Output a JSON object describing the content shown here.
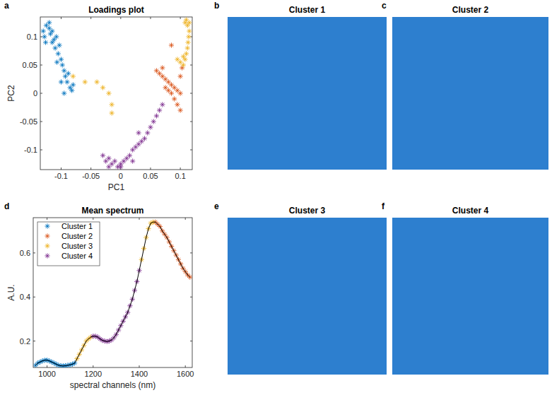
{
  "chart_data": [
    {
      "type": "scatter",
      "panel_label": "a",
      "title": "Loadings plot",
      "x_label": "PC1",
      "y_label": "PC2",
      "xlim": [
        -0.135,
        0.12
      ],
      "xticks": [
        -0.1,
        -0.05,
        0,
        0.05,
        0.1
      ],
      "ylim": [
        -0.135,
        0.135
      ],
      "yticks": [
        -0.1,
        -0.05,
        0,
        0.05,
        0.1
      ],
      "marker": "asterisk",
      "series": [
        {
          "name": "Cluster 1",
          "color": "#0072BD",
          "x": [
            -0.13,
            -0.128,
            -0.125,
            -0.12,
            -0.118,
            -0.115,
            -0.112,
            -0.11,
            -0.108,
            -0.105,
            -0.103,
            -0.1,
            -0.098,
            -0.095,
            -0.093,
            -0.09,
            -0.088,
            -0.085,
            -0.082,
            -0.08,
            -0.12,
            -0.126,
            -0.115,
            -0.107,
            -0.1,
            -0.095
          ],
          "values": [
            0.11,
            0.1,
            0.12,
            0.115,
            0.105,
            0.09,
            0.095,
            0.08,
            0.1,
            0.07,
            0.085,
            0.06,
            0.05,
            0.04,
            0.03,
            0.02,
            0.035,
            0.01,
            0.005,
            0.015,
            0.125,
            0.09,
            0.11,
            0.055,
            0.02,
            0.0
          ]
        },
        {
          "name": "Cluster 2",
          "color": "#D95319",
          "x": [
            0.085,
            0.06,
            0.065,
            0.07,
            0.075,
            0.08,
            0.085,
            0.09,
            0.095,
            0.1,
            0.075,
            0.08,
            0.085,
            0.09,
            0.095,
            0.1,
            0.07,
            0.1,
            0.103
          ],
          "values": [
            0.085,
            0.04,
            0.035,
            0.03,
            0.025,
            0.02,
            0.015,
            0.01,
            0.005,
            0.0,
            0.01,
            0.005,
            0.0,
            -0.01,
            -0.02,
            -0.03,
            0.045,
            0.03,
            0.045
          ]
        },
        {
          "name": "Cluster 3",
          "color": "#EDB120",
          "x": [
            -0.08,
            -0.06,
            -0.04,
            -0.03,
            -0.02,
            -0.015,
            -0.015,
            0.105,
            0.108,
            0.11,
            0.112,
            0.113,
            0.114,
            0.115,
            0.112,
            0.11,
            0.108,
            0.115,
            0.105,
            0.1,
            0.095
          ],
          "values": [
            0.03,
            0.02,
            0.02,
            0.01,
            0.0,
            -0.02,
            -0.035,
            0.05,
            0.06,
            0.07,
            0.08,
            0.09,
            0.1,
            0.11,
            0.12,
            0.13,
            0.125,
            0.125,
            0.065,
            0.055,
            0.06
          ]
        },
        {
          "name": "Cluster 4",
          "color": "#7E2F8E",
          "x": [
            -0.03,
            -0.025,
            -0.02,
            -0.015,
            -0.01,
            -0.005,
            0,
            0.005,
            0.01,
            0.015,
            0.02,
            0.025,
            0.03,
            0.035,
            0.04,
            0.045,
            0.05,
            0.055,
            0.06,
            0.065,
            0.07,
            -0.02,
            0,
            0.03,
            0.02
          ],
          "values": [
            -0.11,
            -0.12,
            -0.115,
            -0.125,
            -0.12,
            -0.13,
            -0.125,
            -0.12,
            -0.115,
            -0.11,
            -0.1,
            -0.095,
            -0.09,
            -0.085,
            -0.08,
            -0.07,
            -0.06,
            -0.05,
            -0.04,
            -0.03,
            -0.02,
            -0.13,
            -0.13,
            -0.07,
            -0.12
          ]
        }
      ]
    },
    {
      "type": "image",
      "panel_label": "b",
      "title": "Cluster 1"
    },
    {
      "type": "image",
      "panel_label": "c",
      "title": "Cluster 2"
    },
    {
      "type": "line",
      "panel_label": "d",
      "title": "Mean spectrum",
      "x_label": "spectral channels (nm)",
      "y_label": "A.U.",
      "xlim": [
        940,
        1630
      ],
      "xticks": [
        1000,
        1200,
        1400,
        1600
      ],
      "ylim": [
        0.08,
        0.76
      ],
      "yticks": [
        0.2,
        0.4,
        0.6
      ],
      "legend": "upper left",
      "series": [
        {
          "name": "Cluster 1",
          "color": "#0072BD",
          "type": "scatter",
          "marker": "asterisk",
          "x": [
            950,
            960,
            970,
            980,
            990,
            1000,
            1010,
            1020,
            1030,
            1040,
            1050,
            1060,
            1070,
            1080,
            1090,
            1100,
            1110,
            1120
          ],
          "values": [
            0.09,
            0.1,
            0.105,
            0.11,
            0.113,
            0.113,
            0.11,
            0.105,
            0.1,
            0.095,
            0.09,
            0.088,
            0.087,
            0.088,
            0.09,
            0.092,
            0.095,
            0.1
          ]
        },
        {
          "name": "Cluster 2",
          "color": "#D95319",
          "type": "scatter",
          "marker": "asterisk",
          "x": [
            1470,
            1480,
            1490,
            1500,
            1510,
            1520,
            1530,
            1540,
            1550,
            1560,
            1570,
            1580,
            1590,
            1600,
            1610,
            1620
          ],
          "values": [
            0.74,
            0.73,
            0.72,
            0.7,
            0.685,
            0.67,
            0.65,
            0.63,
            0.61,
            0.59,
            0.57,
            0.55,
            0.53,
            0.515,
            0.5,
            0.49
          ]
        },
        {
          "name": "Cluster 3",
          "color": "#EDB120",
          "type": "scatter",
          "marker": "asterisk",
          "x": [
            1130,
            1140,
            1150,
            1160,
            1170,
            1180,
            1190,
            1410,
            1420,
            1430,
            1440,
            1450,
            1460
          ],
          "values": [
            0.12,
            0.14,
            0.16,
            0.18,
            0.2,
            0.21,
            0.218,
            0.57,
            0.62,
            0.67,
            0.71,
            0.735,
            0.74
          ]
        },
        {
          "name": "Cluster 4",
          "color": "#7E2F8E",
          "type": "scatter",
          "marker": "asterisk",
          "x": [
            1200,
            1210,
            1220,
            1230,
            1240,
            1250,
            1260,
            1270,
            1280,
            1290,
            1300,
            1310,
            1320,
            1330,
            1340,
            1350,
            1360,
            1370,
            1380,
            1390,
            1400
          ],
          "values": [
            0.222,
            0.222,
            0.218,
            0.21,
            0.203,
            0.2,
            0.198,
            0.2,
            0.205,
            0.215,
            0.23,
            0.25,
            0.27,
            0.29,
            0.31,
            0.33,
            0.36,
            0.39,
            0.43,
            0.47,
            0.52
          ]
        },
        {
          "color": "#000000",
          "type": "line",
          "line_style": "solid",
          "x": [
            950,
            960,
            970,
            980,
            990,
            1000,
            1010,
            1020,
            1030,
            1040,
            1050,
            1060,
            1070,
            1080,
            1090,
            1100,
            1110,
            1120,
            1130,
            1140,
            1150,
            1160,
            1170,
            1180,
            1190,
            1200,
            1210,
            1220,
            1230,
            1240,
            1250,
            1260,
            1270,
            1280,
            1290,
            1300,
            1310,
            1320,
            1330,
            1340,
            1350,
            1360,
            1370,
            1380,
            1390,
            1400,
            1410,
            1420,
            1430,
            1440,
            1450,
            1460,
            1470,
            1480,
            1490,
            1500,
            1510,
            1520,
            1530,
            1540,
            1550,
            1560,
            1570,
            1580,
            1590,
            1600,
            1610,
            1620
          ],
          "values": [
            0.09,
            0.1,
            0.105,
            0.11,
            0.113,
            0.113,
            0.11,
            0.105,
            0.1,
            0.095,
            0.09,
            0.088,
            0.087,
            0.088,
            0.09,
            0.092,
            0.095,
            0.1,
            0.12,
            0.14,
            0.16,
            0.18,
            0.2,
            0.21,
            0.218,
            0.222,
            0.222,
            0.218,
            0.21,
            0.203,
            0.2,
            0.198,
            0.2,
            0.205,
            0.215,
            0.23,
            0.25,
            0.27,
            0.29,
            0.31,
            0.33,
            0.36,
            0.39,
            0.43,
            0.47,
            0.52,
            0.57,
            0.62,
            0.67,
            0.71,
            0.735,
            0.74,
            0.74,
            0.73,
            0.72,
            0.7,
            0.685,
            0.67,
            0.65,
            0.63,
            0.61,
            0.59,
            0.57,
            0.55,
            0.53,
            0.515,
            0.5,
            0.49
          ]
        }
      ]
    },
    {
      "type": "image",
      "panel_label": "e",
      "title": "Cluster 3"
    },
    {
      "type": "image",
      "panel_label": "f",
      "title": "Cluster 4"
    }
  ]
}
